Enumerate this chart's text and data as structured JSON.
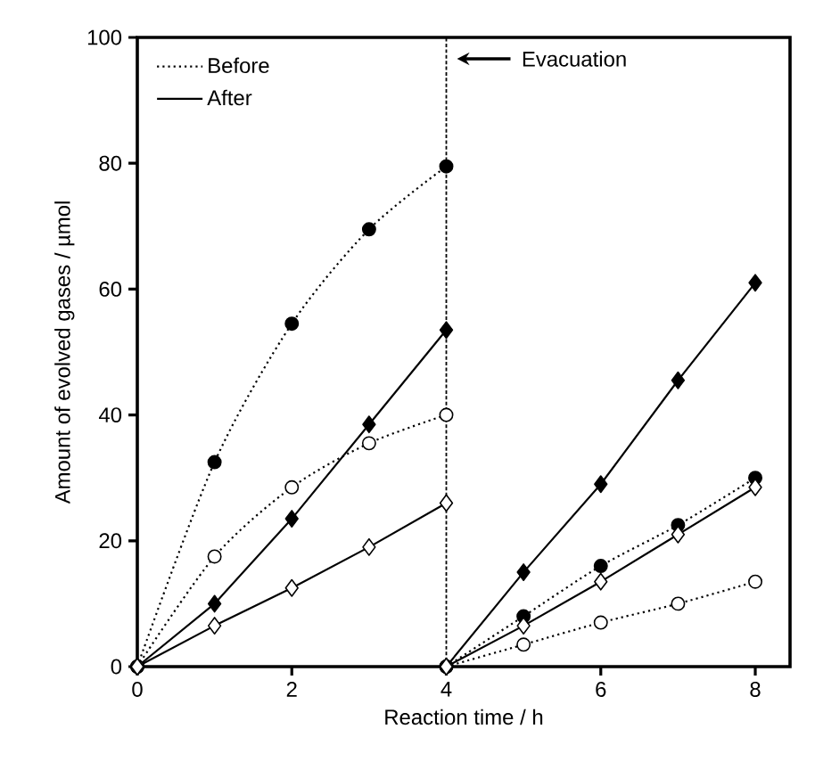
{
  "chart_data": {
    "type": "line",
    "xlabel": "Reaction time / h",
    "ylabel": "Amount of evolved gases / µmol",
    "series": [
      {
        "name": "Before",
        "color": "#000000",
        "marker": "circle",
        "line_style": "dotted",
        "x": [
          0,
          1,
          2,
          3,
          4
        ],
        "values": [
          0,
          32.5,
          54.5,
          69.5,
          79.5
        ]
      },
      {
        "color": "#000000",
        "marker": "circle",
        "line_style": "dotted",
        "x": [
          4,
          5,
          6,
          7,
          8
        ],
        "values": [
          0,
          8,
          16,
          22.5,
          30
        ]
      },
      {
        "color": "#ffffff",
        "marker": "circle",
        "line_style": "dotted",
        "x": [
          0,
          1,
          2,
          3,
          4
        ],
        "values": [
          0,
          17.5,
          28.5,
          35.5,
          40
        ]
      },
      {
        "color": "#ffffff",
        "marker": "circle",
        "line_style": "dotted",
        "x": [
          4,
          5,
          6,
          7,
          8
        ],
        "values": [
          0,
          3.5,
          7,
          10,
          13.5
        ]
      },
      {
        "name": "After",
        "color": "#000000",
        "marker": "diamond",
        "line_style": "solid",
        "x": [
          0,
          1,
          2,
          3,
          4
        ],
        "values": [
          0,
          10,
          23.5,
          38.5,
          53.5
        ]
      },
      {
        "color": "#000000",
        "marker": "diamond",
        "line_style": "solid",
        "x": [
          4,
          5,
          6,
          7,
          8
        ],
        "values": [
          0,
          15,
          29,
          45.5,
          61
        ]
      },
      {
        "color": "#ffffff",
        "marker": "diamond",
        "line_style": "solid",
        "x": [
          0,
          1,
          2,
          3,
          4
        ],
        "values": [
          0,
          6.5,
          12.5,
          19,
          26
        ]
      },
      {
        "color": "#ffffff",
        "marker": "diamond",
        "line_style": "solid",
        "x": [
          4,
          5,
          6,
          7,
          8
        ],
        "values": [
          0,
          6.5,
          13.5,
          21,
          28.5
        ]
      }
    ],
    "xlim": [
      0,
      8.45
    ],
    "ylim": [
      0,
      100
    ],
    "xticks": [
      0,
      2,
      4,
      6,
      8
    ],
    "yticks": [
      0,
      20,
      40,
      60,
      80,
      100
    ],
    "ref_lines": [
      {
        "axis": "x",
        "value": 4,
        "line_style": "dashed"
      }
    ],
    "annotations": [
      "Evacuation"
    ],
    "grid": false,
    "legend": "top left"
  }
}
